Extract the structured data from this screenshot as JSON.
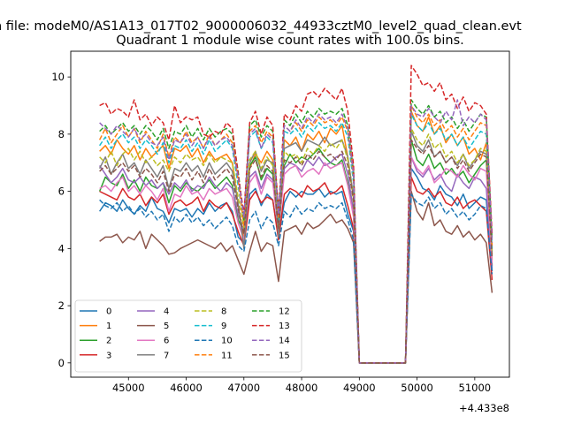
{
  "figure": {
    "suptitle": "n file: modeM0/AS1A13_017T02_9000006032_44933cztM0_level2_quad_clean.evt"
  },
  "chart_data": {
    "type": "line",
    "title": "Quadrant 1 module wise count rates with 100.0s bins.",
    "xlabel": "",
    "ylabel": "",
    "x_offset_label": "+4.433e8",
    "xlim": [
      44000,
      51600
    ],
    "ylim": [
      -0.5,
      10.9
    ],
    "xticks": [
      45000,
      46000,
      47000,
      48000,
      49000,
      50000,
      51000
    ],
    "yticks": [
      0,
      2,
      4,
      6,
      8,
      10
    ],
    "grid": false,
    "legend": {
      "position": "lower-left",
      "ncol": 4
    },
    "x": [
      44500,
      44600,
      44700,
      44800,
      44900,
      45000,
      45100,
      45200,
      45300,
      45400,
      45500,
      45600,
      45700,
      45800,
      45900,
      46000,
      46100,
      46200,
      46300,
      46400,
      46500,
      46600,
      46700,
      46800,
      46900,
      47000,
      47100,
      47200,
      47300,
      47400,
      47500,
      47600,
      47700,
      47800,
      47900,
      48000,
      48100,
      48200,
      48300,
      48400,
      48500,
      48600,
      48700,
      48800,
      48900,
      49000,
      49800,
      49900,
      50000,
      50100,
      50200,
      50300,
      50400,
      50500,
      50600,
      50700,
      50800,
      50900,
      51000,
      51100,
      51200,
      51300
    ],
    "series": [
      {
        "name": "0",
        "color": "#1f77b4",
        "dash": "solid",
        "values": [
          5.3,
          5.6,
          5.5,
          5.3,
          5.7,
          5.4,
          5.2,
          5.5,
          5.3,
          5.8,
          5.4,
          5.3,
          4.9,
          5.4,
          5.3,
          5.4,
          5.1,
          5.4,
          5.2,
          5.6,
          5.3,
          5.5,
          5.6,
          5.3,
          4.4,
          4.2,
          5.9,
          6.1,
          5.5,
          5.9,
          5.7,
          4.4,
          5.6,
          6.0,
          5.8,
          6.0,
          5.9,
          5.9,
          6.1,
          5.8,
          6.0,
          5.9,
          6.0,
          5.2,
          4.6,
          0,
          0,
          6.8,
          6.5,
          6.1,
          6.0,
          5.7,
          6.2,
          5.9,
          5.8,
          5.5,
          5.9,
          5.4,
          5.6,
          5.8,
          5.7,
          3.2
        ]
      },
      {
        "name": "1",
        "color": "#ff7f0e",
        "dash": "solid",
        "values": [
          7.4,
          7.6,
          7.3,
          7.8,
          7.5,
          7.3,
          7.6,
          7.1,
          7.5,
          7.2,
          7.4,
          7.6,
          6.8,
          7.5,
          7.4,
          7.6,
          7.2,
          7.5,
          7.0,
          7.4,
          7.1,
          7.2,
          7.3,
          7.0,
          5.5,
          4.3,
          6.8,
          7.3,
          7.0,
          7.4,
          7.1,
          4.5,
          7.8,
          7.6,
          7.9,
          7.4,
          8.0,
          7.8,
          8.1,
          7.7,
          8.2,
          8.0,
          8.3,
          7.2,
          5.8,
          0,
          0,
          8.8,
          8.3,
          8.1,
          8.6,
          8.0,
          8.3,
          7.7,
          8.0,
          7.6,
          7.9,
          7.3,
          7.5,
          7.1,
          7.7,
          3.6
        ]
      },
      {
        "name": "2",
        "color": "#2ca02c",
        "dash": "solid",
        "values": [
          6.0,
          6.5,
          6.3,
          6.2,
          6.6,
          6.1,
          6.4,
          6.0,
          6.5,
          6.2,
          6.1,
          6.3,
          5.6,
          6.2,
          6.0,
          6.3,
          6.1,
          6.0,
          6.2,
          6.4,
          6.1,
          6.3,
          6.5,
          6.2,
          5.0,
          4.6,
          6.9,
          7.2,
          6.4,
          6.8,
          6.6,
          4.7,
          6.9,
          7.3,
          7.0,
          7.2,
          7.1,
          7.3,
          7.5,
          7.2,
          7.0,
          6.9,
          7.1,
          6.3,
          5.2,
          0,
          0,
          7.8,
          7.1,
          6.9,
          7.3,
          6.8,
          7.0,
          6.6,
          6.8,
          6.5,
          6.7,
          6.3,
          6.6,
          6.9,
          7.1,
          3.4
        ]
      },
      {
        "name": "3",
        "color": "#d62728",
        "dash": "solid",
        "values": [
          6.0,
          5.9,
          5.8,
          5.7,
          6.1,
          5.8,
          5.7,
          5.9,
          5.5,
          5.8,
          5.6,
          5.9,
          5.2,
          5.6,
          5.7,
          5.5,
          5.6,
          5.8,
          5.3,
          5.7,
          5.5,
          5.4,
          5.6,
          5.2,
          4.6,
          4.1,
          5.7,
          6.0,
          5.6,
          5.8,
          5.7,
          4.3,
          5.9,
          6.1,
          6.0,
          5.8,
          6.2,
          6.0,
          6.1,
          6.3,
          5.9,
          6.0,
          6.2,
          5.5,
          4.7,
          0,
          0,
          6.5,
          6.0,
          5.9,
          6.1,
          5.8,
          6.0,
          5.6,
          5.5,
          5.8,
          5.4,
          5.6,
          5.7,
          5.5,
          5.3,
          2.9
        ]
      },
      {
        "name": "4",
        "color": "#9467bd",
        "dash": "solid",
        "values": [
          6.9,
          6.6,
          6.3,
          6.5,
          6.8,
          6.4,
          6.3,
          6.5,
          6.2,
          6.4,
          6.1,
          6.3,
          5.9,
          6.3,
          6.1,
          6.4,
          6.0,
          6.2,
          6.1,
          6.5,
          6.2,
          6.0,
          6.3,
          6.1,
          5.2,
          4.6,
          6.5,
          6.7,
          6.1,
          6.6,
          6.4,
          4.8,
          6.8,
          7.0,
          6.9,
          6.7,
          7.1,
          6.9,
          7.2,
          6.9,
          7.0,
          7.2,
          7.3,
          6.6,
          5.3,
          0,
          0,
          7.2,
          6.7,
          6.5,
          6.8,
          6.4,
          6.6,
          6.2,
          6.0,
          6.6,
          6.3,
          6.1,
          6.5,
          6.4,
          6.1,
          3.3
        ]
      },
      {
        "name": "5",
        "color": "#8c564b",
        "dash": "solid",
        "values": [
          4.25,
          4.4,
          4.4,
          4.5,
          4.2,
          4.4,
          4.3,
          4.6,
          4.0,
          4.5,
          4.3,
          4.1,
          3.8,
          3.85,
          4.0,
          4.1,
          4.2,
          4.3,
          4.2,
          4.1,
          4.0,
          4.2,
          3.9,
          4.1,
          3.6,
          3.1,
          3.9,
          4.6,
          3.9,
          4.2,
          4.1,
          2.85,
          4.6,
          4.7,
          4.8,
          4.5,
          4.9,
          4.7,
          4.8,
          5.0,
          5.2,
          4.9,
          5.0,
          4.7,
          4.2,
          0,
          0,
          6.0,
          5.3,
          5.0,
          5.6,
          4.8,
          5.0,
          4.6,
          4.5,
          4.8,
          4.4,
          4.6,
          4.3,
          4.5,
          4.2,
          2.45
        ]
      },
      {
        "name": "6",
        "color": "#e377c2",
        "dash": "solid",
        "values": [
          6.1,
          6.2,
          6.0,
          6.3,
          6.5,
          6.0,
          6.2,
          5.9,
          6.2,
          6.0,
          5.7,
          6.1,
          5.3,
          5.9,
          5.8,
          6.2,
          5.9,
          6.0,
          5.7,
          6.1,
          5.9,
          6.0,
          6.1,
          5.8,
          4.9,
          4.3,
          6.3,
          6.6,
          5.9,
          6.5,
          6.3,
          4.6,
          6.6,
          6.8,
          6.9,
          6.5,
          6.7,
          6.8,
          6.6,
          7.0,
          6.8,
          6.9,
          7.0,
          6.2,
          5.1,
          0,
          0,
          7.2,
          6.8,
          6.6,
          6.9,
          6.3,
          6.5,
          6.8,
          6.7,
          6.5,
          6.9,
          6.6,
          6.4,
          6.8,
          6.7,
          3.5
        ]
      },
      {
        "name": "7",
        "color": "#7f7f7f",
        "dash": "solid",
        "values": [
          6.8,
          7.2,
          6.6,
          7.0,
          7.3,
          6.8,
          7.0,
          6.6,
          7.1,
          6.8,
          6.5,
          6.9,
          6.1,
          6.8,
          6.7,
          7.0,
          6.7,
          6.9,
          6.5,
          7.0,
          6.6,
          6.8,
          7.0,
          6.7,
          5.6,
          4.0,
          7.0,
          7.4,
          6.7,
          7.1,
          7.0,
          4.4,
          7.5,
          7.6,
          7.7,
          7.4,
          7.8,
          7.7,
          7.6,
          7.9,
          7.6,
          7.7,
          7.8,
          7.2,
          5.8,
          0,
          0,
          8.1,
          7.6,
          7.4,
          7.8,
          7.2,
          7.4,
          7.0,
          7.2,
          6.9,
          7.3,
          6.8,
          7.1,
          7.4,
          7.3,
          3.9
        ]
      },
      {
        "name": "8",
        "color": "#bcbd22",
        "dash": "dashed",
        "values": [
          7.2,
          7.0,
          7.4,
          6.9,
          7.3,
          7.5,
          7.1,
          7.4,
          7.0,
          7.2,
          6.9,
          7.1,
          6.7,
          7.2,
          7.0,
          7.3,
          7.1,
          7.2,
          6.9,
          7.3,
          7.0,
          7.2,
          7.1,
          7.0,
          5.8,
          4.7,
          7.1,
          7.4,
          6.8,
          7.2,
          6.9,
          4.7,
          7.4,
          7.2,
          7.3,
          7.0,
          7.5,
          7.3,
          7.6,
          7.4,
          7.7,
          7.5,
          7.8,
          7.1,
          5.6,
          0,
          0,
          8.2,
          7.8,
          7.6,
          8.0,
          7.5,
          7.7,
          7.2,
          7.4,
          7.0,
          7.3,
          6.9,
          7.1,
          7.5,
          7.4,
          3.8
        ]
      },
      {
        "name": "9",
        "color": "#17becf",
        "dash": "dashed",
        "values": [
          7.6,
          7.9,
          7.5,
          7.8,
          8.0,
          7.7,
          7.9,
          7.5,
          7.8,
          7.6,
          7.3,
          7.7,
          7.0,
          7.6,
          7.5,
          7.8,
          7.4,
          7.7,
          7.3,
          7.8,
          7.4,
          7.6,
          7.8,
          7.5,
          6.2,
          4.9,
          7.9,
          8.1,
          7.5,
          7.9,
          7.7,
          5.0,
          8.1,
          8.0,
          8.2,
          7.9,
          8.3,
          8.1,
          8.4,
          8.2,
          8.3,
          8.1,
          8.4,
          7.9,
          6.3,
          0,
          0,
          8.7,
          8.3,
          8.1,
          8.4,
          8.0,
          8.2,
          7.8,
          8.0,
          7.6,
          7.9,
          7.5,
          7.8,
          8.1,
          8.0,
          4.0
        ]
      },
      {
        "name": "10",
        "color": "#1f77b4",
        "dash": "dashed",
        "values": [
          5.7,
          5.5,
          5.4,
          5.6,
          5.3,
          5.5,
          5.2,
          5.4,
          5.1,
          5.3,
          5.0,
          5.2,
          4.6,
          5.1,
          4.9,
          5.2,
          4.9,
          5.1,
          4.8,
          5.0,
          4.7,
          4.9,
          5.1,
          4.8,
          4.1,
          3.9,
          5.0,
          5.3,
          4.7,
          5.1,
          4.9,
          4.1,
          5.3,
          5.1,
          5.5,
          5.2,
          5.4,
          5.3,
          5.6,
          5.4,
          5.5,
          5.4,
          5.6,
          5.0,
          4.3,
          0,
          0,
          5.9,
          5.6,
          5.5,
          5.8,
          5.4,
          5.6,
          5.2,
          5.4,
          5.1,
          5.3,
          5.0,
          5.2,
          5.5,
          5.4,
          3.1
        ]
      },
      {
        "name": "11",
        "color": "#ff7f0e",
        "dash": "dashed",
        "values": [
          7.8,
          8.2,
          7.7,
          8.0,
          8.3,
          7.9,
          8.2,
          7.7,
          8.1,
          7.8,
          7.5,
          8.0,
          7.2,
          7.9,
          7.7,
          8.1,
          7.7,
          7.9,
          7.5,
          8.0,
          7.6,
          7.8,
          8.0,
          7.7,
          6.4,
          4.8,
          8.1,
          8.3,
          7.7,
          8.1,
          7.9,
          5.1,
          8.3,
          8.1,
          8.4,
          8.1,
          8.5,
          8.3,
          8.6,
          8.4,
          8.5,
          8.3,
          8.6,
          8.1,
          6.5,
          0,
          0,
          9.0,
          8.6,
          8.4,
          8.7,
          8.3,
          8.5,
          8.1,
          8.3,
          7.9,
          8.2,
          7.8,
          8.1,
          8.4,
          8.3,
          4.1
        ]
      },
      {
        "name": "12",
        "color": "#2ca02c",
        "dash": "dashed",
        "values": [
          8.1,
          8.3,
          8.0,
          8.2,
          8.4,
          8.1,
          8.3,
          8.0,
          8.3,
          8.1,
          7.8,
          8.2,
          7.5,
          8.1,
          8.0,
          8.3,
          7.9,
          8.2,
          7.8,
          8.2,
          7.9,
          8.1,
          8.2,
          8.0,
          6.7,
          5.0,
          8.3,
          8.5,
          7.9,
          8.3,
          8.1,
          5.3,
          8.5,
          8.3,
          8.7,
          8.4,
          8.8,
          8.6,
          8.9,
          8.7,
          8.8,
          8.7,
          8.9,
          8.3,
          6.7,
          0,
          0,
          9.2,
          8.9,
          8.7,
          9.0,
          8.6,
          8.8,
          8.4,
          8.6,
          8.2,
          8.5,
          8.1,
          8.4,
          8.7,
          8.6,
          4.3
        ]
      },
      {
        "name": "13",
        "color": "#d62728",
        "dash": "dashed",
        "values": [
          9.0,
          9.1,
          8.7,
          8.9,
          8.8,
          8.6,
          9.2,
          8.5,
          8.7,
          8.3,
          8.6,
          8.4,
          7.8,
          9.0,
          8.4,
          8.6,
          8.5,
          8.6,
          8.0,
          7.9,
          8.1,
          8.0,
          8.4,
          8.2,
          6.6,
          5.2,
          8.4,
          8.8,
          8.0,
          8.6,
          8.3,
          5.2,
          8.7,
          8.5,
          9.0,
          8.8,
          9.4,
          9.5,
          9.3,
          9.6,
          9.4,
          9.2,
          9.6,
          8.8,
          6.9,
          0,
          0,
          10.4,
          10.1,
          9.7,
          9.8,
          9.5,
          9.8,
          9.2,
          9.4,
          8.9,
          9.3,
          8.8,
          9.1,
          9.0,
          8.7,
          4.5
        ]
      },
      {
        "name": "14",
        "color": "#9467bd",
        "dash": "dashed",
        "values": [
          8.4,
          8.2,
          8.0,
          8.3,
          8.1,
          7.9,
          8.2,
          7.8,
          8.0,
          7.7,
          7.6,
          7.9,
          7.1,
          7.8,
          7.7,
          8.0,
          7.6,
          7.9,
          7.5,
          7.9,
          7.6,
          7.8,
          7.9,
          7.6,
          6.5,
          5.1,
          8.0,
          8.2,
          7.5,
          8.0,
          7.8,
          5.2,
          8.3,
          8.1,
          8.5,
          8.2,
          8.6,
          8.4,
          8.7,
          8.5,
          8.6,
          8.4,
          8.7,
          8.2,
          6.6,
          0,
          0,
          9.0,
          8.7,
          8.6,
          8.9,
          8.6,
          8.4,
          8.8,
          8.5,
          9.2,
          8.3,
          8.6,
          8.4,
          8.7,
          8.5,
          4.2
        ]
      },
      {
        "name": "15",
        "color": "#8c564b",
        "dash": "dashed",
        "values": [
          6.7,
          6.9,
          6.6,
          6.8,
          7.0,
          6.7,
          6.9,
          6.5,
          6.8,
          6.6,
          6.3,
          6.7,
          6.0,
          6.6,
          6.5,
          6.8,
          6.4,
          6.7,
          6.3,
          6.8,
          6.4,
          6.6,
          6.8,
          6.5,
          5.4,
          4.5,
          6.8,
          7.1,
          6.5,
          6.9,
          6.7,
          4.7,
          7.1,
          7.0,
          7.2,
          6.9,
          7.3,
          7.1,
          7.4,
          7.2,
          7.3,
          7.1,
          7.4,
          6.9,
          5.7,
          0,
          0,
          7.8,
          7.5,
          7.3,
          7.6,
          7.2,
          7.4,
          7.0,
          7.2,
          6.8,
          7.1,
          6.7,
          7.0,
          7.3,
          7.2,
          3.7
        ]
      }
    ]
  }
}
